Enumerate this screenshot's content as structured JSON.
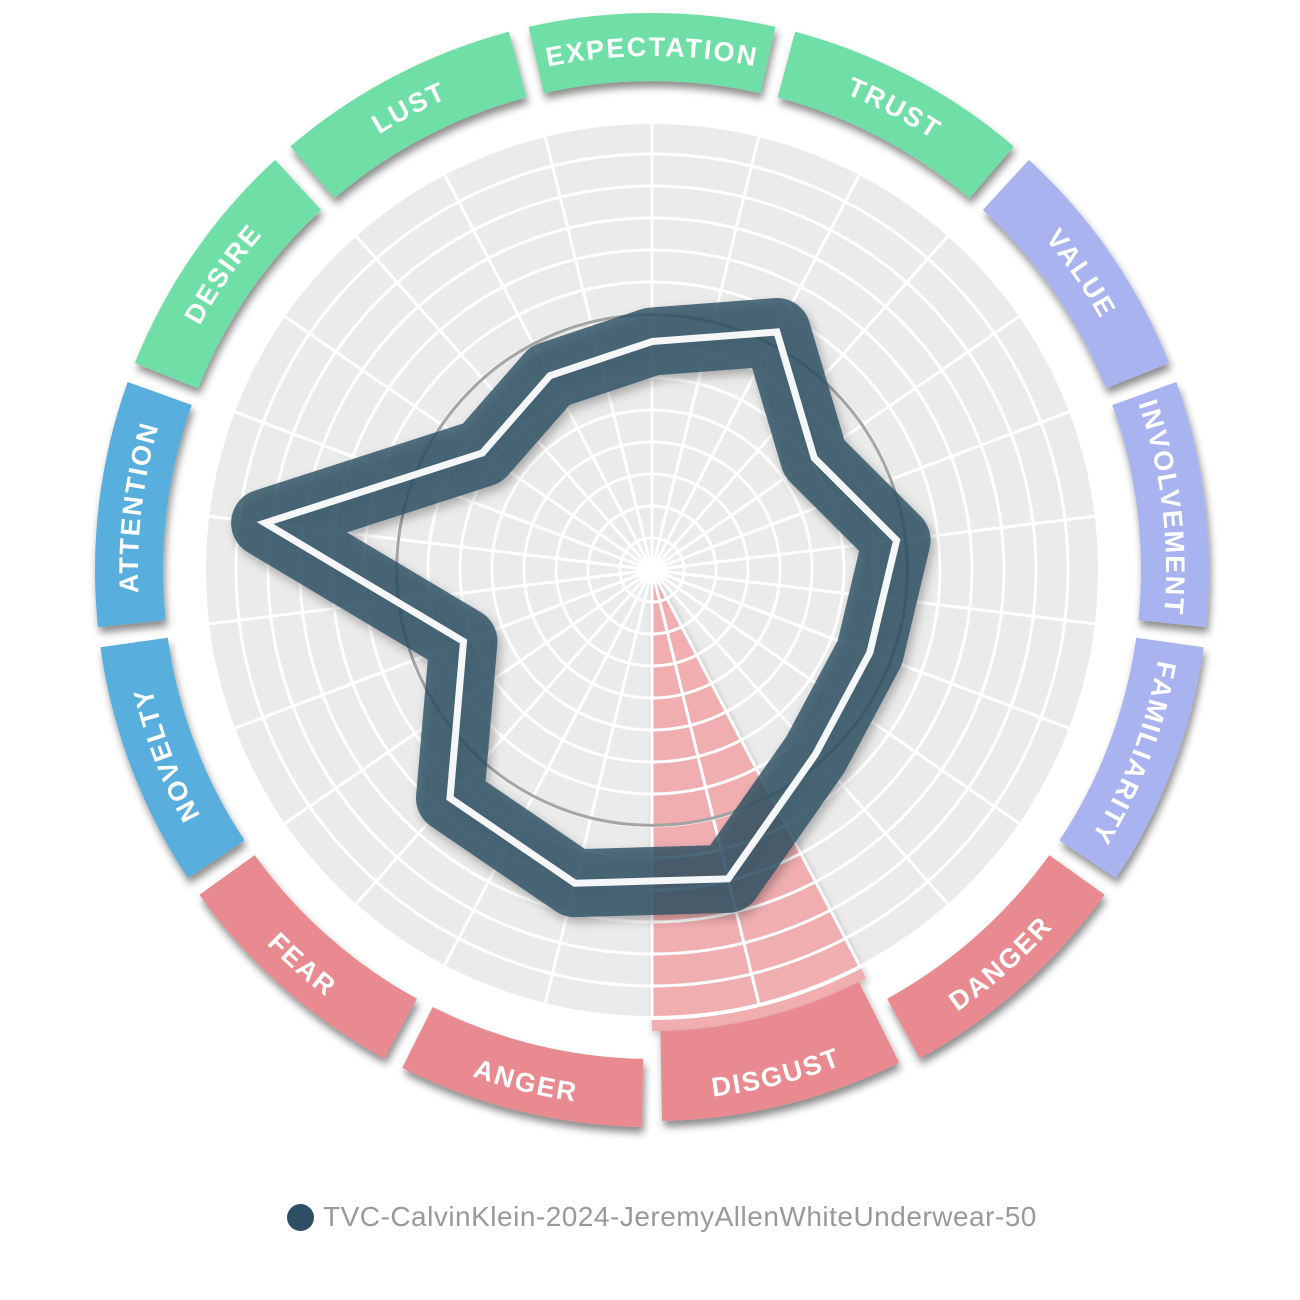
{
  "chart_data": {
    "type": "radar",
    "title": "",
    "categories": [
      {
        "label": "EXPECTATION",
        "color": "#6fdfa7",
        "group": "green"
      },
      {
        "label": "TRUST",
        "color": "#6fdfa7",
        "group": "green"
      },
      {
        "label": "VALUE",
        "color": "#a9b3f0",
        "group": "purple"
      },
      {
        "label": "INVOLVEMENT",
        "color": "#a9b3f0",
        "group": "purple"
      },
      {
        "label": "FAMILIARITY",
        "color": "#a9b3f0",
        "group": "purple"
      },
      {
        "label": "DANGER",
        "color": "#e88a8f",
        "group": "red"
      },
      {
        "label": "DISGUST",
        "color": "#e88a8f",
        "group": "red"
      },
      {
        "label": "ANGER",
        "color": "#e88a8f",
        "group": "red"
      },
      {
        "label": "FEAR",
        "color": "#e88a8f",
        "group": "red"
      },
      {
        "label": "NOVELTY",
        "color": "#58aedd",
        "group": "blue"
      },
      {
        "label": "ATTENTION",
        "color": "#58aedd",
        "group": "blue"
      },
      {
        "label": "DESIRE",
        "color": "#6fdfa7",
        "group": "green"
      },
      {
        "label": "LUST",
        "color": "#6fdfa7",
        "group": "green"
      }
    ],
    "series": [
      {
        "name": "TVC-CalvinKlein-2024-JeremyAllenWhiteUnderwear-50",
        "color": "#2d4f63",
        "values": [
          51,
          60,
          44,
          55,
          52,
          55,
          71,
          72,
          68,
          45,
          87,
          46,
          49
        ]
      }
    ],
    "scale": {
      "min": 0,
      "max": 100,
      "rings": 14,
      "ring_step_percent": 7.14,
      "reference_ring_percent": 57
    },
    "highlighted_category": "DISGUST",
    "highlight_wedge_color": "#f0aeb1",
    "grid": {
      "disc_fill": "#ebebeb",
      "line_color": "#ffffff",
      "reference_ring_color": "#9b9b9b",
      "spokes": 26
    },
    "legend_position": "bottom-left"
  }
}
